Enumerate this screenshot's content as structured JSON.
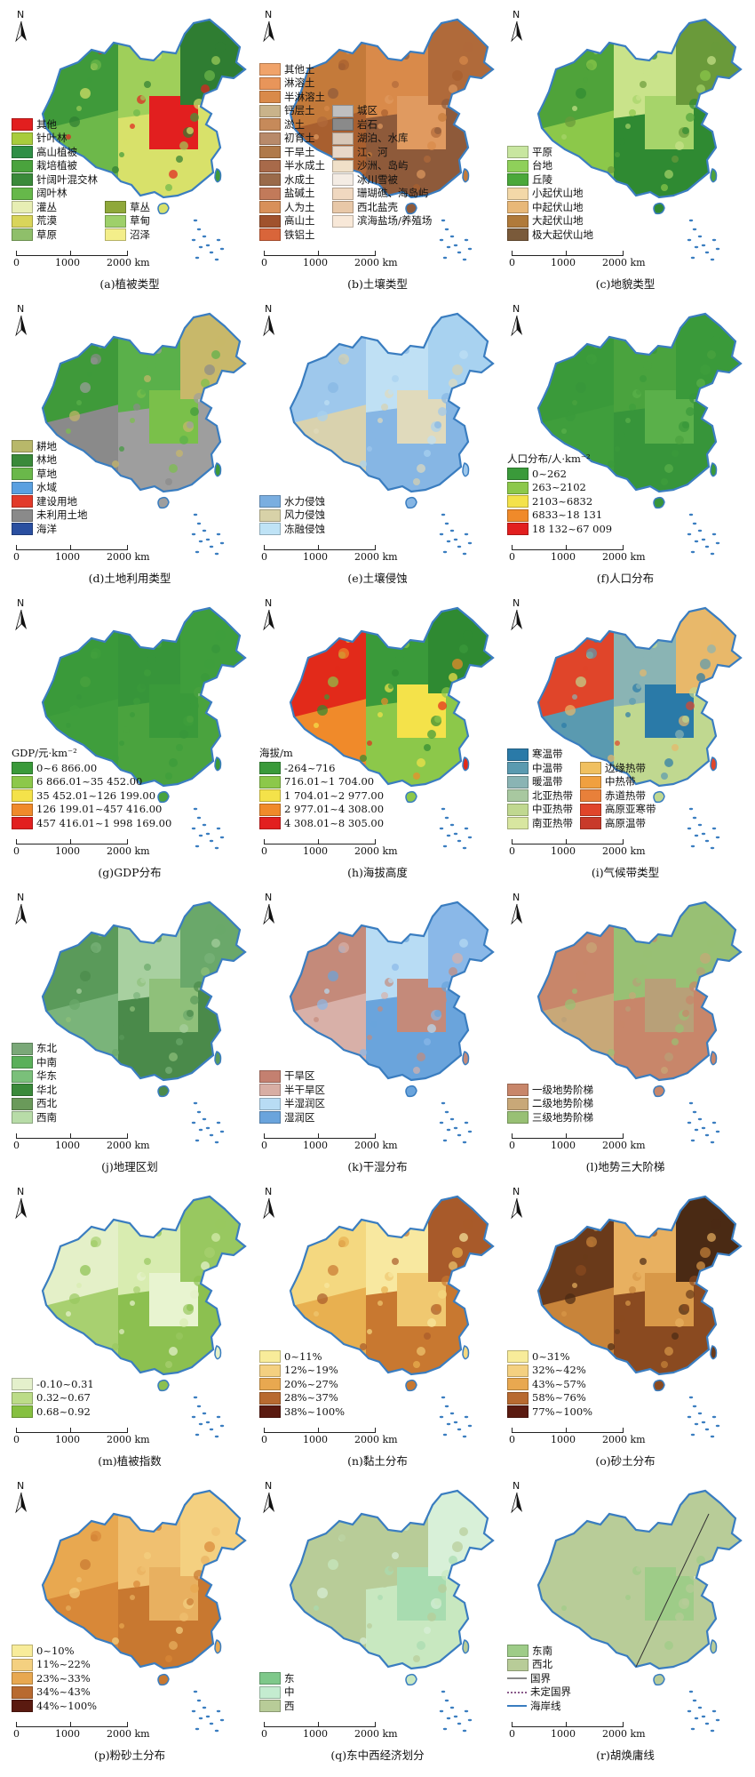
{
  "scale": {
    "t0": "0",
    "t1": "1000",
    "t2": "2000 km"
  },
  "north_label": "N",
  "coast_color": "#3a7dc0",
  "panels": [
    {
      "id": "a",
      "caption": "(a)植被类型",
      "legend_title": "",
      "map_colors": [
        "#3f9a3a",
        "#6db84a",
        "#9fcf5a",
        "#d8e16a",
        "#e21f1f",
        "#2f7d32"
      ],
      "legend_cols": [
        [
          {
            "label": "其他",
            "color": "#e21f1f"
          },
          {
            "label": "针叶林",
            "color": "#a8cc3c"
          },
          {
            "label": "高山植被",
            "color": "#2f8f46"
          },
          {
            "label": "栽培植被",
            "color": "#4aa33d"
          },
          {
            "label": "针阔叶混交林",
            "color": "#3a8a3a"
          },
          {
            "label": "阔叶林",
            "color": "#66b84a"
          },
          {
            "label": "灌丛",
            "color": "#e7eeb4"
          },
          {
            "label": "荒漠",
            "color": "#d9d55a"
          },
          {
            "label": "草原",
            "color": "#8fbf6a"
          }
        ],
        [
          {
            "label": "",
            "color": ""
          },
          {
            "label": "",
            "color": ""
          },
          {
            "label": "",
            "color": ""
          },
          {
            "label": "",
            "color": ""
          },
          {
            "label": "",
            "color": ""
          },
          {
            "label": "",
            "color": ""
          },
          {
            "label": "草丛",
            "color": "#8fa83a"
          },
          {
            "label": "草甸",
            "color": "#9ed06a"
          },
          {
            "label": "沼泽",
            "color": "#f3ee8a"
          }
        ]
      ]
    },
    {
      "id": "b",
      "caption": "(b)土壤类型",
      "legend_title": "",
      "map_colors": [
        "#c47a3a",
        "#a85f2f",
        "#d98a4a",
        "#8e5a3a",
        "#e09a60",
        "#b06a3a"
      ],
      "legend_cols": [
        [
          {
            "label": "其他土",
            "color": "#f0a36a"
          },
          {
            "label": "淋溶土",
            "color": "#e8955a"
          },
          {
            "label": "半淋溶土",
            "color": "#d98a4a"
          },
          {
            "label": "钙层土",
            "color": "#c9b38a"
          },
          {
            "label": "淤土",
            "color": "#c68a5a"
          },
          {
            "label": "初育土",
            "color": "#b88a6a"
          },
          {
            "label": "干旱土",
            "color": "#b07a4a"
          },
          {
            "label": "半水成土",
            "color": "#a86a4a"
          },
          {
            "label": "水成土",
            "color": "#9a6a4a"
          },
          {
            "label": "盐碱土",
            "color": "#c27a5a"
          },
          {
            "label": "人为土",
            "color": "#d8905a"
          },
          {
            "label": "高山土",
            "color": "#a0522d"
          },
          {
            "label": "铁铝土",
            "color": "#d9653a"
          }
        ],
        [
          {
            "label": "",
            "color": ""
          },
          {
            "label": "",
            "color": ""
          },
          {
            "label": "",
            "color": ""
          },
          {
            "label": "城区",
            "color": "#bfbfbf"
          },
          {
            "label": "岩石",
            "color": "#8a8a8a"
          },
          {
            "label": "湖泊、水库",
            "color": "#d8c8b8"
          },
          {
            "label": "江、河",
            "color": "#e8d8c8"
          },
          {
            "label": "沙洲、岛屿",
            "color": "#f0e0c8"
          },
          {
            "label": "冰川雪被",
            "color": "#f4ece4"
          },
          {
            "label": "珊瑚礁、海岛屿",
            "color": "#f0d8c0"
          },
          {
            "label": "西北盐壳",
            "color": "#e8c8a8"
          },
          {
            "label": "滨海盐场/养殖场",
            "color": "#f8e8d8"
          }
        ]
      ]
    },
    {
      "id": "c",
      "caption": "(c)地貌类型",
      "legend_title": "",
      "map_colors": [
        "#4fa33a",
        "#8cc84a",
        "#c9e38a",
        "#2f8a32",
        "#a6d46a",
        "#6a9a3a"
      ],
      "legend_cols": [
        [
          {
            "label": "平原",
            "color": "#c8e6a0"
          },
          {
            "label": "台地",
            "color": "#8fd05a"
          },
          {
            "label": "丘陵",
            "color": "#4aa83a"
          },
          {
            "label": "小起伏山地",
            "color": "#f3d8a8"
          },
          {
            "label": "中起伏山地",
            "color": "#e8b878"
          },
          {
            "label": "大起伏山地",
            "color": "#b07a3a"
          },
          {
            "label": "极大起伏山地",
            "color": "#7a5a3a"
          }
        ]
      ]
    },
    {
      "id": "d",
      "caption": "(d)土地利用类型",
      "legend_title": "",
      "map_colors": [
        "#3f9a3a",
        "#8a8a8a",
        "#5ab04a",
        "#9e9e9e",
        "#7ac04a",
        "#c8b86a"
      ],
      "legend_cols": [
        [
          {
            "label": "耕地",
            "color": "#b8b86a"
          },
          {
            "label": "林地",
            "color": "#3a8a3a"
          },
          {
            "label": "草地",
            "color": "#6ab84a"
          },
          {
            "label": "水域",
            "color": "#5aa0e0"
          },
          {
            "label": "建设用地",
            "color": "#e23a2a"
          },
          {
            "label": "未利用土地",
            "color": "#8a8a8a"
          },
          {
            "label": "海洋",
            "color": "#2a4fa0"
          }
        ]
      ]
    },
    {
      "id": "e",
      "caption": "(e)土壤侵蚀",
      "legend_title": "",
      "map_colors": [
        "#9ec8ec",
        "#d9d2ae",
        "#bfe0f4",
        "#86b6e4",
        "#e0dabc",
        "#a8d2f0"
      ],
      "legend_cols": [
        [
          {
            "label": "水力侵蚀",
            "color": "#7aaee0"
          },
          {
            "label": "风力侵蚀",
            "color": "#d8d2a8"
          },
          {
            "label": "冻融侵蚀",
            "color": "#bfe3f6"
          }
        ]
      ]
    },
    {
      "id": "f",
      "caption": "(f)人口分布",
      "legend_title": "人口分布/人·km⁻²",
      "map_colors": [
        "#3a9a3a",
        "#3f9e3c",
        "#4aa33e",
        "#37953a",
        "#5ab04a",
        "#3a9a3a"
      ],
      "legend_cols": [
        [
          {
            "label": "0~262",
            "color": "#3a9a3a"
          },
          {
            "label": "263~2102",
            "color": "#8cc84a"
          },
          {
            "label": "2103~6832",
            "color": "#f4e24a"
          },
          {
            "label": "6833~18 131",
            "color": "#f08a2a"
          },
          {
            "label": "18 132~67 009",
            "color": "#e21f1f"
          }
        ]
      ]
    },
    {
      "id": "g",
      "caption": "(g)GDP分布",
      "legend_title": "GDP/元·km⁻²",
      "map_colors": [
        "#3a9a3a",
        "#3f9e3c",
        "#37953a",
        "#4aa33e",
        "#3a9a3a",
        "#3f9e3c"
      ],
      "legend_cols": [
        [
          {
            "label": "0~6 866.00",
            "color": "#3a9a3a"
          },
          {
            "label": "6 866.01~35 452.00",
            "color": "#8cc84a"
          },
          {
            "label": "35 452.01~126 199.00",
            "color": "#f4e24a"
          },
          {
            "label": "126 199.01~457 416.00",
            "color": "#f08a2a"
          },
          {
            "label": "457 416.01~1 998 169.00",
            "color": "#e21f1f"
          }
        ]
      ]
    },
    {
      "id": "h",
      "caption": "(h)海拔高度",
      "legend_title": "海拔/m",
      "map_colors": [
        "#e22a1a",
        "#f08a2a",
        "#3a9a3a",
        "#8cc84a",
        "#f4e24a",
        "#2f8a32"
      ],
      "legend_cols": [
        [
          {
            "label": "-264~716",
            "color": "#3a9a3a"
          },
          {
            "label": "716.01~1 704.00",
            "color": "#8cc84a"
          },
          {
            "label": "1 704.01~2 977.00",
            "color": "#f4e24a"
          },
          {
            "label": "2 977.01~4 308.00",
            "color": "#f08a2a"
          },
          {
            "label": "4 308.01~8 305.00",
            "color": "#e21f1f"
          }
        ]
      ]
    },
    {
      "id": "i",
      "caption": "(i)气候带类型",
      "legend_title": "",
      "map_colors": [
        "#e0452a",
        "#5a9ab0",
        "#8ab4b4",
        "#c0d890",
        "#2a7aa8",
        "#e8b86a"
      ],
      "legend_cols": [
        [
          {
            "label": "寒温带",
            "color": "#2a7aa8"
          },
          {
            "label": "中温带",
            "color": "#5a9ab0"
          },
          {
            "label": "暖温带",
            "color": "#8ab4b4"
          },
          {
            "label": "北亚热带",
            "color": "#a8c8a0"
          },
          {
            "label": "中亚热带",
            "color": "#c0d890"
          },
          {
            "label": "南亚热带",
            "color": "#d8e6a0"
          }
        ],
        [
          {
            "label": "",
            "color": ""
          },
          {
            "label": "边缘热带",
            "color": "#f0c060"
          },
          {
            "label": "中热带",
            "color": "#f0a040"
          },
          {
            "label": "赤道热带",
            "color": "#e8803a"
          },
          {
            "label": "高原亚寒带",
            "color": "#e0452a"
          },
          {
            "label": "高原温带",
            "color": "#c83a2a"
          }
        ]
      ]
    },
    {
      "id": "j",
      "caption": "(j)地理区划",
      "legend_title": "",
      "map_colors": [
        "#5a9a5a",
        "#7ab47a",
        "#a8d0a0",
        "#4a8a4a",
        "#8fc07a",
        "#6aa86a"
      ],
      "legend_cols": [
        [
          {
            "label": "东北",
            "color": "#7aa878"
          },
          {
            "label": "中南",
            "color": "#5ab05a"
          },
          {
            "label": "华东",
            "color": "#7ac07a"
          },
          {
            "label": "华北",
            "color": "#3a8a3a"
          },
          {
            "label": "西北",
            "color": "#6a9a5a"
          },
          {
            "label": "西南",
            "color": "#b8dca8"
          }
        ]
      ]
    },
    {
      "id": "k",
      "caption": "(k)干湿分布",
      "legend_title": "",
      "map_colors": [
        "#c48a7a",
        "#d8b0a8",
        "#b8dcf4",
        "#6aa4dc",
        "#c48a7a",
        "#8ab8e8"
      ],
      "legend_cols": [
        [
          {
            "label": "干旱区",
            "color": "#c48070"
          },
          {
            "label": "半干旱区",
            "color": "#d8aea4"
          },
          {
            "label": "半湿润区",
            "color": "#b8dcf4"
          },
          {
            "label": "湿润区",
            "color": "#6aa4dc"
          }
        ]
      ]
    },
    {
      "id": "l",
      "caption": "(l)地势三大阶梯",
      "legend_title": "",
      "map_colors": [
        "#c8866a",
        "#c8a878",
        "#98c074",
        "#c8866a",
        "#b8a078",
        "#98c074"
      ],
      "legend_cols": [
        [
          {
            "label": "一级地势阶梯",
            "color": "#c8866a"
          },
          {
            "label": "二级地势阶梯",
            "color": "#c8a878"
          },
          {
            "label": "三级地势阶梯",
            "color": "#98c074"
          }
        ]
      ]
    },
    {
      "id": "m",
      "caption": "(m)植被指数",
      "legend_title": "",
      "map_colors": [
        "#e4f0c8",
        "#a8d070",
        "#d8ecb0",
        "#8cc050",
        "#e8f4d0",
        "#98c860"
      ],
      "legend_cols": [
        [
          {
            "label": "-0.10~0.31",
            "color": "#e4f0cc"
          },
          {
            "label": "0.32~0.67",
            "color": "#bcdc88"
          },
          {
            "label": "0.68~0.92",
            "color": "#86c040"
          }
        ]
      ]
    },
    {
      "id": "n",
      "caption": "(n)黏土分布",
      "legend_title": "",
      "map_colors": [
        "#f4d880",
        "#e8b050",
        "#f8e8a0",
        "#c87830",
        "#f0c870",
        "#a85a2a"
      ],
      "legend_cols": [
        [
          {
            "label": "0~11%",
            "color": "#f8ec9a"
          },
          {
            "label": "12%~19%",
            "color": "#f4d080"
          },
          {
            "label": "20%~27%",
            "color": "#e8a850"
          },
          {
            "label": "28%~37%",
            "color": "#b86a30"
          },
          {
            "label": "38%~100%",
            "color": "#5a1a10"
          }
        ]
      ]
    },
    {
      "id": "o",
      "caption": "(o)砂土分布",
      "legend_title": "",
      "map_colors": [
        "#6a3a1a",
        "#c8843a",
        "#e8b060",
        "#8a4a20",
        "#d89848",
        "#4a2a14"
      ],
      "legend_cols": [
        [
          {
            "label": "0~31%",
            "color": "#f8ec9a"
          },
          {
            "label": "32%~42%",
            "color": "#f4d080"
          },
          {
            "label": "43%~57%",
            "color": "#e8a850"
          },
          {
            "label": "58%~76%",
            "color": "#b86a30"
          },
          {
            "label": "77%~100%",
            "color": "#5a1a10"
          }
        ]
      ]
    },
    {
      "id": "p",
      "caption": "(p)粉砂土分布",
      "legend_title": "",
      "map_colors": [
        "#e8a850",
        "#d88838",
        "#f0c070",
        "#c87830",
        "#e8b060",
        "#f4d080"
      ],
      "legend_cols": [
        [
          {
            "label": "0~10%",
            "color": "#f8ec9a"
          },
          {
            "label": "11%~22%",
            "color": "#f4d080"
          },
          {
            "label": "23%~33%",
            "color": "#e8a850"
          },
          {
            "label": "34%~43%",
            "color": "#b86a30"
          },
          {
            "label": "44%~100%",
            "color": "#5a1a10"
          }
        ]
      ]
    },
    {
      "id": "q",
      "caption": "(q)东中西经济划分",
      "legend_title": "",
      "map_colors": [
        "#b8cc98",
        "#b8cc98",
        "#b8cc98",
        "#c8e8c0",
        "#a8dcb0",
        "#d8f0d8"
      ],
      "legend_cols": [
        [
          {
            "label": "东",
            "color": "#7ec88a"
          },
          {
            "label": "中",
            "color": "#c4ecd0"
          },
          {
            "label": "西",
            "color": "#b8cc98"
          }
        ]
      ]
    },
    {
      "id": "r",
      "caption": "(r)胡焕庸线",
      "legend_title": "",
      "map_colors": [
        "#b8cc98",
        "#b8cc98",
        "#b8cc98",
        "#b8cc98",
        "#9ecc88",
        "#b8cc98"
      ],
      "legend_cols": [
        [
          {
            "label": "东南",
            "color": "#9ecc88",
            "kind": "fill"
          },
          {
            "label": "西北",
            "color": "#b8cc98",
            "kind": "fill"
          },
          {
            "label": "国界",
            "color": "#8a8a8a",
            "kind": "line"
          },
          {
            "label": "未定国界",
            "color": "#8a5a8a",
            "kind": "dotted"
          },
          {
            "label": "海岸线",
            "color": "#3a7dc0",
            "kind": "coast"
          }
        ]
      ]
    }
  ]
}
